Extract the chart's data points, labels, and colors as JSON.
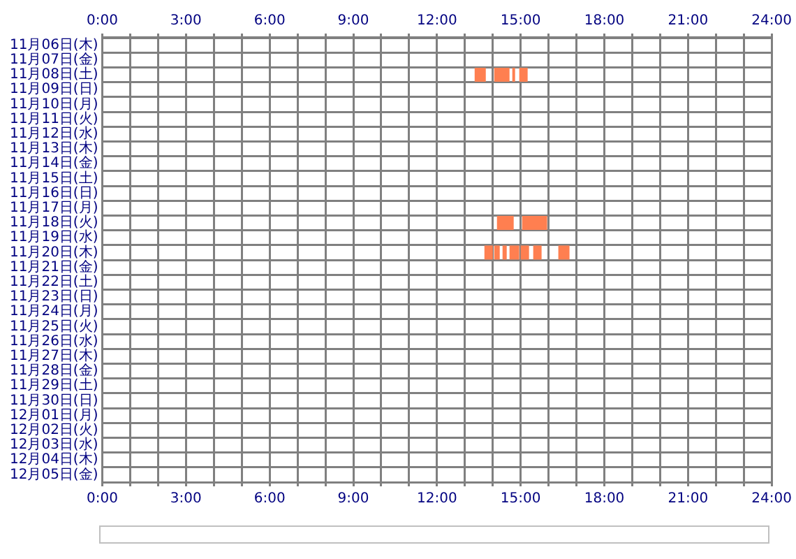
{
  "chart_data": {
    "type": "bar",
    "orientation": "horizontal",
    "grid": true,
    "categories": [
      "11月06日(木)",
      "11月07日(金)",
      "11月08日(土)",
      "11月09日(日)",
      "11月10日(月)",
      "11月11日(火)",
      "11月12日(水)",
      "11月13日(木)",
      "11月14日(金)",
      "11月15日(土)",
      "11月16日(日)",
      "11月17日(月)",
      "11月18日(火)",
      "11月19日(水)",
      "11月20日(木)",
      "11月21日(金)",
      "11月22日(土)",
      "11月23日(日)",
      "11月24日(月)",
      "11月25日(火)",
      "11月26日(水)",
      "11月27日(木)",
      "11月28日(金)",
      "11月29日(土)",
      "11月30日(日)",
      "12月01日(月)",
      "12月02日(火)",
      "12月03日(水)",
      "12月04日(木)",
      "12月05日(金)"
    ],
    "xlim": [
      0,
      24
    ],
    "xticks": [
      {
        "value": 0,
        "label": "0:00"
      },
      {
        "value": 1,
        "label": null
      },
      {
        "value": 2,
        "label": null
      },
      {
        "value": 3,
        "label": "3:00"
      },
      {
        "value": 4,
        "label": null
      },
      {
        "value": 5,
        "label": null
      },
      {
        "value": 6,
        "label": "6:00"
      },
      {
        "value": 7,
        "label": null
      },
      {
        "value": 8,
        "label": null
      },
      {
        "value": 9,
        "label": "9:00"
      },
      {
        "value": 10,
        "label": null
      },
      {
        "value": 11,
        "label": null
      },
      {
        "value": 12,
        "label": "12:00"
      },
      {
        "value": 13,
        "label": null
      },
      {
        "value": 14,
        "label": null
      },
      {
        "value": 15,
        "label": "15:00"
      },
      {
        "value": 16,
        "label": null
      },
      {
        "value": 17,
        "label": null
      },
      {
        "value": 18,
        "label": "18:00"
      },
      {
        "value": 19,
        "label": null
      },
      {
        "value": 20,
        "label": null
      },
      {
        "value": 21,
        "label": "21:00"
      },
      {
        "value": 22,
        "label": null
      },
      {
        "value": 23,
        "label": null
      },
      {
        "value": 24,
        "label": "24:00"
      }
    ],
    "x2lim": [
      0,
      24
    ],
    "x2ticks": [
      {
        "value": 0,
        "label": "0:00"
      },
      {
        "value": 1,
        "label": null
      },
      {
        "value": 2,
        "label": null
      },
      {
        "value": 3,
        "label": "3:00"
      },
      {
        "value": 4,
        "label": null
      },
      {
        "value": 5,
        "label": null
      },
      {
        "value": 6,
        "label": "6:00"
      },
      {
        "value": 7,
        "label": null
      },
      {
        "value": 8,
        "label": null
      },
      {
        "value": 9,
        "label": "9:00"
      },
      {
        "value": 10,
        "label": null
      },
      {
        "value": 11,
        "label": null
      },
      {
        "value": 12,
        "label": "12:00"
      },
      {
        "value": 13,
        "label": null
      },
      {
        "value": 14,
        "label": null
      },
      {
        "value": 15,
        "label": "15:00"
      },
      {
        "value": 16,
        "label": null
      },
      {
        "value": 17,
        "label": null
      },
      {
        "value": 18,
        "label": "18:00"
      },
      {
        "value": 19,
        "label": null
      },
      {
        "value": 20,
        "label": null
      },
      {
        "value": 21,
        "label": "21:00"
      },
      {
        "value": 22,
        "label": null
      },
      {
        "value": 23,
        "label": null
      },
      {
        "value": 24,
        "label": "24:00"
      }
    ],
    "series": [
      {
        "color": "#ff7f50",
        "base": [
          null,
          null,
          13.35,
          null,
          null,
          null,
          null,
          null,
          null,
          null,
          null,
          null,
          14.15,
          null,
          13.7,
          null,
          null,
          null,
          null,
          null,
          null,
          null,
          null,
          null,
          null,
          null,
          null,
          null,
          null,
          null
        ],
        "values": [
          null,
          null,
          0.4,
          null,
          null,
          null,
          null,
          null,
          null,
          null,
          null,
          null,
          0.6,
          null,
          0.3,
          null,
          null,
          null,
          null,
          null,
          null,
          null,
          null,
          null,
          null,
          null,
          null,
          null,
          null,
          null
        ]
      },
      {
        "color": "#ff7f50",
        "base": [
          null,
          null,
          14.05,
          null,
          null,
          null,
          null,
          null,
          null,
          null,
          null,
          null,
          15.05,
          null,
          14.05,
          null,
          null,
          null,
          null,
          null,
          null,
          null,
          null,
          null,
          null,
          null,
          null,
          null,
          null,
          null
        ],
        "values": [
          null,
          null,
          0.55,
          null,
          null,
          null,
          null,
          null,
          null,
          null,
          null,
          null,
          0.9,
          null,
          0.2,
          null,
          null,
          null,
          null,
          null,
          null,
          null,
          null,
          null,
          null,
          null,
          null,
          null,
          null,
          null
        ]
      },
      {
        "color": "#ff7f50",
        "base": [
          null,
          null,
          14.7,
          null,
          null,
          null,
          null,
          null,
          null,
          null,
          null,
          null,
          null,
          null,
          14.35,
          null,
          null,
          null,
          null,
          null,
          null,
          null,
          null,
          null,
          null,
          null,
          null,
          null,
          null,
          null
        ],
        "values": [
          null,
          null,
          0.1,
          null,
          null,
          null,
          null,
          null,
          null,
          null,
          null,
          null,
          null,
          null,
          0.15,
          null,
          null,
          null,
          null,
          null,
          null,
          null,
          null,
          null,
          null,
          null,
          null,
          null,
          null,
          null
        ]
      },
      {
        "color": "#ff7f50",
        "base": [
          null,
          null,
          14.95,
          null,
          null,
          null,
          null,
          null,
          null,
          null,
          null,
          null,
          null,
          null,
          14.6,
          null,
          null,
          null,
          null,
          null,
          null,
          null,
          null,
          null,
          null,
          null,
          null,
          null,
          null,
          null
        ],
        "values": [
          null,
          null,
          0.3,
          null,
          null,
          null,
          null,
          null,
          null,
          null,
          null,
          null,
          null,
          null,
          0.35,
          null,
          null,
          null,
          null,
          null,
          null,
          null,
          null,
          null,
          null,
          null,
          null,
          null,
          null,
          null
        ]
      },
      {
        "color": "#ff7f50",
        "base": [
          null,
          null,
          null,
          null,
          null,
          null,
          null,
          null,
          null,
          null,
          null,
          null,
          null,
          null,
          15.0,
          null,
          null,
          null,
          null,
          null,
          null,
          null,
          null,
          null,
          null,
          null,
          null,
          null,
          null,
          null
        ],
        "values": [
          null,
          null,
          null,
          null,
          null,
          null,
          null,
          null,
          null,
          null,
          null,
          null,
          null,
          null,
          0.3,
          null,
          null,
          null,
          null,
          null,
          null,
          null,
          null,
          null,
          null,
          null,
          null,
          null,
          null,
          null
        ]
      },
      {
        "color": "#ff7f50",
        "base": [
          null,
          null,
          null,
          null,
          null,
          null,
          null,
          null,
          null,
          null,
          null,
          null,
          null,
          null,
          15.45,
          null,
          null,
          null,
          null,
          null,
          null,
          null,
          null,
          null,
          null,
          null,
          null,
          null,
          null,
          null
        ],
        "values": [
          null,
          null,
          null,
          null,
          null,
          null,
          null,
          null,
          null,
          null,
          null,
          null,
          null,
          null,
          0.3,
          null,
          null,
          null,
          null,
          null,
          null,
          null,
          null,
          null,
          null,
          null,
          null,
          null,
          null,
          null
        ]
      },
      {
        "color": "#ff7f50",
        "base": [
          null,
          null,
          null,
          null,
          null,
          null,
          null,
          null,
          null,
          null,
          null,
          null,
          null,
          null,
          16.35,
          null,
          null,
          null,
          null,
          null,
          null,
          null,
          null,
          null,
          null,
          null,
          null,
          null,
          null,
          null
        ],
        "values": [
          null,
          null,
          null,
          null,
          null,
          null,
          null,
          null,
          null,
          null,
          null,
          null,
          null,
          null,
          0.4,
          null,
          null,
          null,
          null,
          null,
          null,
          null,
          null,
          null,
          null,
          null,
          null,
          null,
          null,
          null
        ]
      }
    ]
  }
}
